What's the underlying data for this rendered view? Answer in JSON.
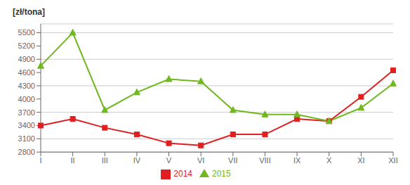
{
  "chart_data": {
    "type": "line",
    "ylabel": "[zł/tona]",
    "categories": [
      "I",
      "II",
      "III",
      "IV",
      "V",
      "VI",
      "VII",
      "VIII",
      "IX",
      "X",
      "XI",
      "XII"
    ],
    "series": [
      {
        "name": "2014",
        "color": "#e02020",
        "marker": "square",
        "values": [
          3400,
          3550,
          3350,
          3200,
          3000,
          2950,
          3200,
          3200,
          3550,
          3500,
          4050,
          4650
        ]
      },
      {
        "name": "2015",
        "color": "#70b820",
        "marker": "triangle",
        "values": [
          4750,
          5500,
          3750,
          4150,
          4450,
          4400,
          3750,
          3650,
          3650,
          3500,
          3800,
          4350
        ]
      }
    ],
    "ylim": [
      2800,
      5700
    ],
    "yticks": [
      2800,
      3100,
      3400,
      3700,
      4000,
      4300,
      4600,
      4900,
      5200,
      5500
    ],
    "grid": true,
    "legend": "bottom"
  }
}
